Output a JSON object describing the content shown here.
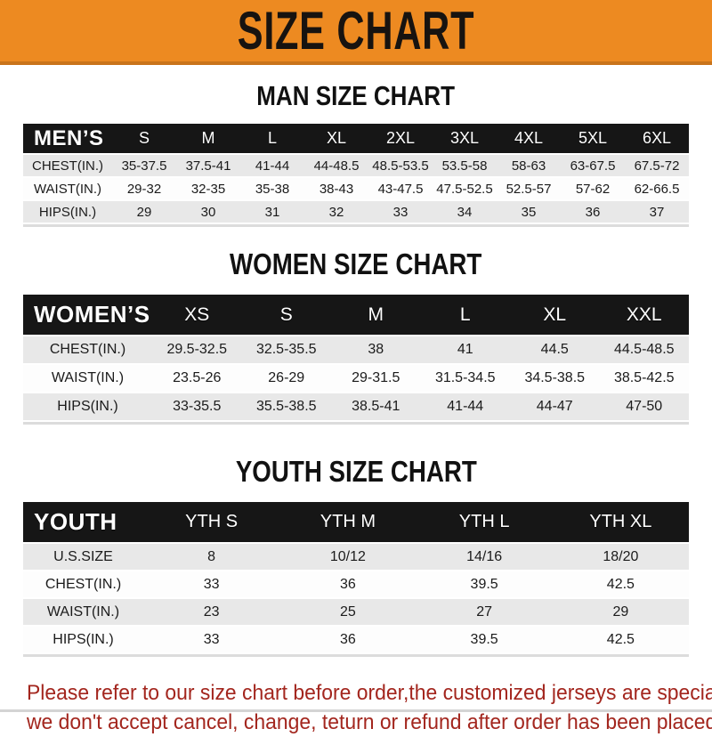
{
  "banner": {
    "title": "SIZE CHART"
  },
  "colors": {
    "banner_orange": "#ED8A21",
    "banner_border": "#C9741B",
    "header_bar_black": "#161616",
    "row_gray": "#E8E8E8",
    "row_white": "#FDFDFD",
    "disclaimer_red": "#A3261E"
  },
  "sections": [
    {
      "heading": "MAN SIZE CHART",
      "corner_label": "MEN’S",
      "columns": [
        "S",
        "M",
        "L",
        "XL",
        "2XL",
        "3XL",
        "4XL",
        "5XL",
        "6XL"
      ],
      "rows": [
        {
          "label": "CHEST(IN.)",
          "values": [
            "35-37.5",
            "37.5-41",
            "41-44",
            "44-48.5",
            "48.5-53.5",
            "53.5-58",
            "58-63",
            "63-67.5",
            "67.5-72"
          ]
        },
        {
          "label": "WAIST(IN.)",
          "values": [
            "29-32",
            "32-35",
            "35-38",
            "38-43",
            "43-47.5",
            "47.5-52.5",
            "52.5-57",
            "57-62",
            "62-66.5"
          ]
        },
        {
          "label": "HIPS(IN.)",
          "values": [
            "29",
            "30",
            "31",
            "32",
            "33",
            "34",
            "35",
            "36",
            "37"
          ]
        }
      ]
    },
    {
      "heading": "WOMEN SIZE CHART",
      "corner_label": "WOMEN’S",
      "columns": [
        "XS",
        "S",
        "M",
        "L",
        "XL",
        "XXL"
      ],
      "rows": [
        {
          "label": "CHEST(IN.)",
          "values": [
            "29.5-32.5",
            "32.5-35.5",
            "38",
            "41",
            "44.5",
            "44.5-48.5"
          ]
        },
        {
          "label": "WAIST(IN.)",
          "values": [
            "23.5-26",
            "26-29",
            "29-31.5",
            "31.5-34.5",
            "34.5-38.5",
            "38.5-42.5"
          ]
        },
        {
          "label": "HIPS(IN.)",
          "values": [
            "33-35.5",
            "35.5-38.5",
            "38.5-41",
            "41-44",
            "44-47",
            "47-50"
          ]
        }
      ]
    },
    {
      "heading": "YOUTH SIZE CHART",
      "corner_label": "YOUTH",
      "columns": [
        "YTH S",
        "YTH M",
        "YTH L",
        "YTH XL"
      ],
      "rows": [
        {
          "label": "U.S.SIZE",
          "values": [
            "8",
            "10/12",
            "14/16",
            "18/20"
          ]
        },
        {
          "label": "CHEST(IN.)",
          "values": [
            "33",
            "36",
            "39.5",
            "42.5"
          ]
        },
        {
          "label": "WAIST(IN.)",
          "values": [
            "23",
            "25",
            "27",
            "29"
          ]
        },
        {
          "label": "HIPS(IN.)",
          "values": [
            "33",
            "36",
            "39.5",
            "42.5"
          ]
        }
      ]
    }
  ],
  "footer": {
    "line1": "Please refer to our size chart before order,the customized jerseys are special products,",
    "line2": "we don't accept cancel, change, teturn or refund after order has been placed!"
  }
}
